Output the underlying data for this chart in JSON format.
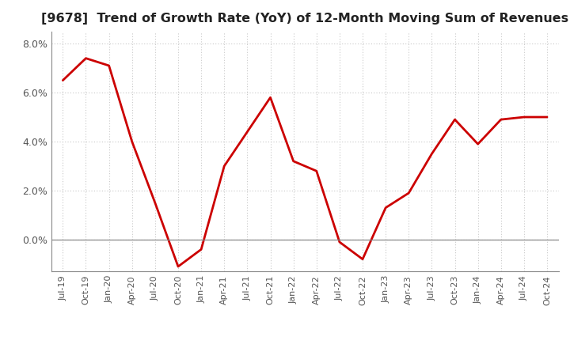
{
  "title": "[9678]  Trend of Growth Rate (YoY) of 12-Month Moving Sum of Revenues",
  "title_fontsize": 11.5,
  "line_color": "#CC0000",
  "background_color": "#FFFFFF",
  "plot_bg_color": "#FFFFFF",
  "ylim": [
    -0.013,
    0.085
  ],
  "yticks": [
    0.0,
    0.02,
    0.04,
    0.06,
    0.08
  ],
  "x_labels": [
    "Jul-19",
    "Oct-19",
    "Jan-20",
    "Apr-20",
    "Jul-20",
    "Oct-20",
    "Jan-21",
    "Apr-21",
    "Jul-21",
    "Oct-21",
    "Jan-22",
    "Apr-22",
    "Jul-22",
    "Oct-22",
    "Jan-23",
    "Apr-23",
    "Jul-23",
    "Oct-23",
    "Jan-24",
    "Apr-24",
    "Jul-24",
    "Oct-24"
  ],
  "values": [
    0.065,
    0.074,
    0.071,
    0.04,
    0.015,
    -0.011,
    -0.004,
    0.03,
    0.044,
    0.058,
    0.032,
    0.028,
    -0.001,
    -0.008,
    0.013,
    0.019,
    0.035,
    0.049,
    0.039,
    0.049,
    0.05,
    0.05
  ],
  "grid_color": "#C8C8C8",
  "tick_label_color": "#555555",
  "zero_line_color": "#888888",
  "spine_color": "#888888"
}
